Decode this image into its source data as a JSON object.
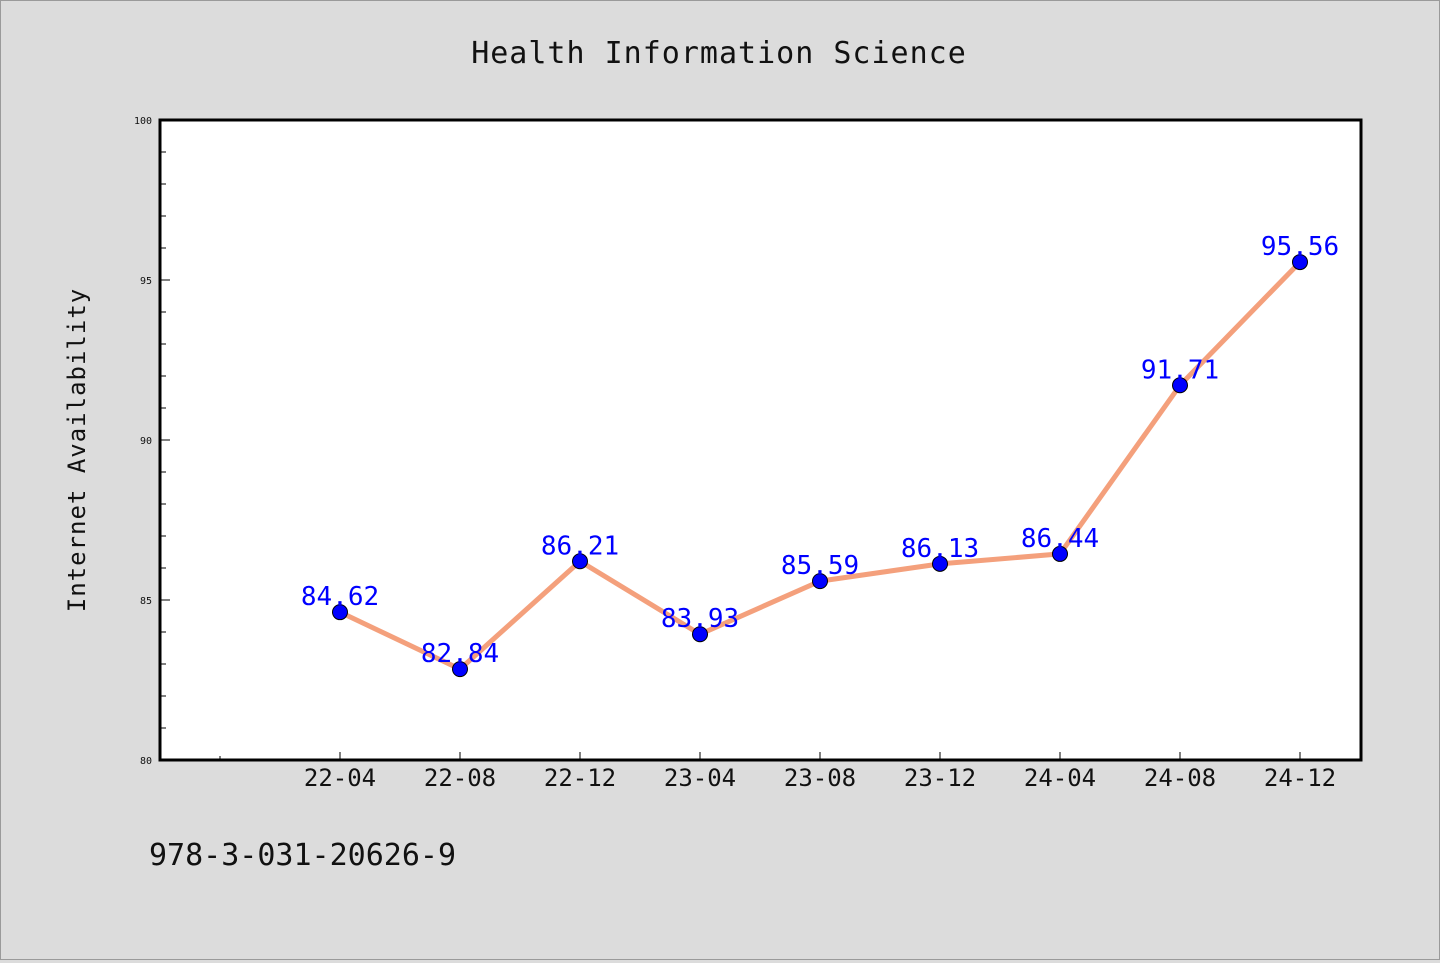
{
  "chart_data": {
    "type": "line",
    "title": "Health Information Science",
    "xlabel": "",
    "ylabel": "Internet Availability",
    "categories": [
      "22-04",
      "22-08",
      "22-12",
      "23-04",
      "23-08",
      "23-12",
      "24-04",
      "24-08",
      "24-12"
    ],
    "series": [
      {
        "values": [
          84.62,
          82.84,
          86.21,
          83.93,
          85.59,
          86.13,
          86.44,
          91.71,
          95.56
        ]
      }
    ],
    "data_labels": [
      "84.62",
      "82.84",
      "86.21",
      "83.93",
      "85.59",
      "86.13",
      "86.44",
      "91.71",
      "95.56"
    ],
    "ylim": [
      80,
      100
    ],
    "yticks": [
      80,
      85,
      90,
      95,
      100
    ],
    "grid": false,
    "legend": "none",
    "colors": {
      "line": "#f4a07c",
      "marker": "#0000ff",
      "data_label": "#0000ff",
      "background": "#dcdcdc",
      "plot_background": "#ffffff"
    }
  },
  "footer": {
    "text": "978-3-031-20626-9"
  }
}
